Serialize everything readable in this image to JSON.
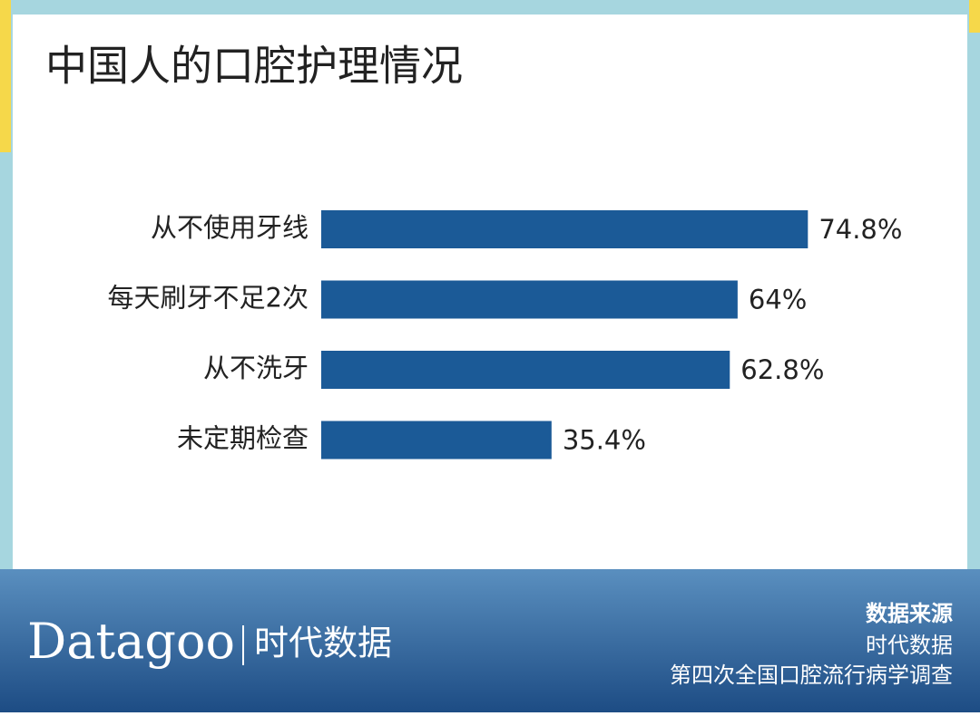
{
  "chart_data": {
    "type": "bar",
    "orientation": "horizontal",
    "title": "中国人的口腔护理情况",
    "categories": [
      "从不使用牙线",
      "每天刷牙不足2次",
      "从不洗牙",
      "未定期检查"
    ],
    "values": [
      74.8,
      64,
      62.8,
      35.4
    ],
    "value_labels": [
      "74.8%",
      "64%",
      "62.8%",
      "35.4%"
    ],
    "color": "#1b5a97"
  },
  "footer": {
    "brand": "Datagoo",
    "brand_cn": "时代数据",
    "source_title": "数据来源",
    "source_lines": [
      "时代数据",
      "第四次全国口腔流行病学调查"
    ]
  }
}
